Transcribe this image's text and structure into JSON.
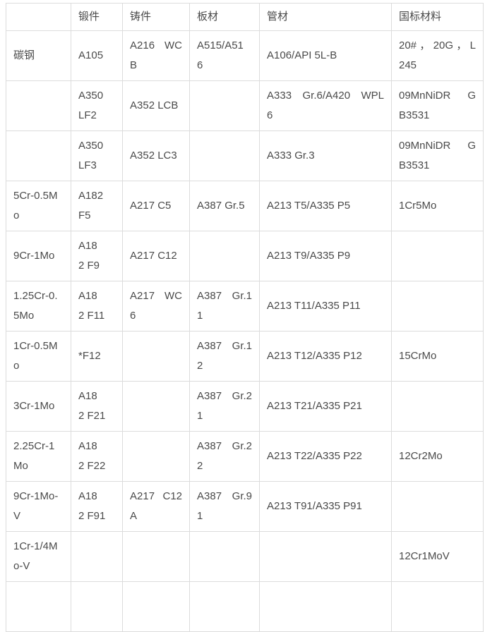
{
  "colors": {
    "background": "#ffffff",
    "border": "#dcdcdc",
    "text": "#4a4a4a"
  },
  "table": {
    "header": [
      "",
      "锻件",
      "铸件",
      "板材",
      "管材",
      "国标材料"
    ],
    "rows": [
      [
        "碳钢",
        "A105",
        "A216 WC\nB",
        "A515/A51\n6",
        "A106/API 5L-B",
        "20#，20G，L\n245"
      ],
      [
        "",
        "A350\nLF2",
        "A352 LCB",
        "",
        "A333 Gr.6/A420 WPL\n6",
        "09MnNiDR G\nB3531"
      ],
      [
        "",
        "A350\nLF3",
        "A352 LC3",
        "",
        "A333 Gr.3",
        "09MnNiDR G\nB3531"
      ],
      [
        "5Cr-0.5M\no",
        "A182\nF5",
        "A217 C5",
        "A387 Gr.5",
        "A213 T5/A335 P5",
        "1Cr5Mo"
      ],
      [
        "9Cr-1Mo",
        "A18\n2 F9",
        "A217 C12",
        "",
        "A213 T9/A335 P9",
        ""
      ],
      [
        "1.25Cr-0.\n5Mo",
        "A18\n2 F11",
        "A217 WC\n6",
        "A387 Gr.1\n1",
        "A213 T11/A335 P11",
        ""
      ],
      [
        "1Cr-0.5M\no",
        "*F12",
        "",
        "A387 Gr.1\n2",
        "A213 T12/A335 P12",
        "15CrMo"
      ],
      [
        "3Cr-1Mo",
        "A18\n2 F21",
        "",
        "A387 Gr.2\n1",
        "A213 T21/A335 P21",
        ""
      ],
      [
        "2.25Cr-1\nMo",
        "A18\n2 F22",
        "",
        "A387 Gr.2\n2",
        "A213 T22/A335 P22",
        "12Cr2Mo"
      ],
      [
        "9Cr-1Mo-\nV",
        "A18\n2 F91",
        "A217 C12\nA",
        "A387 Gr.9\n1",
        "A213 T91/A335 P91",
        ""
      ],
      [
        "1Cr-1/4M\no-V",
        "",
        "",
        "",
        "",
        "12Cr1MoV"
      ],
      [
        "",
        "",
        "",
        "",
        "",
        ""
      ]
    ]
  }
}
